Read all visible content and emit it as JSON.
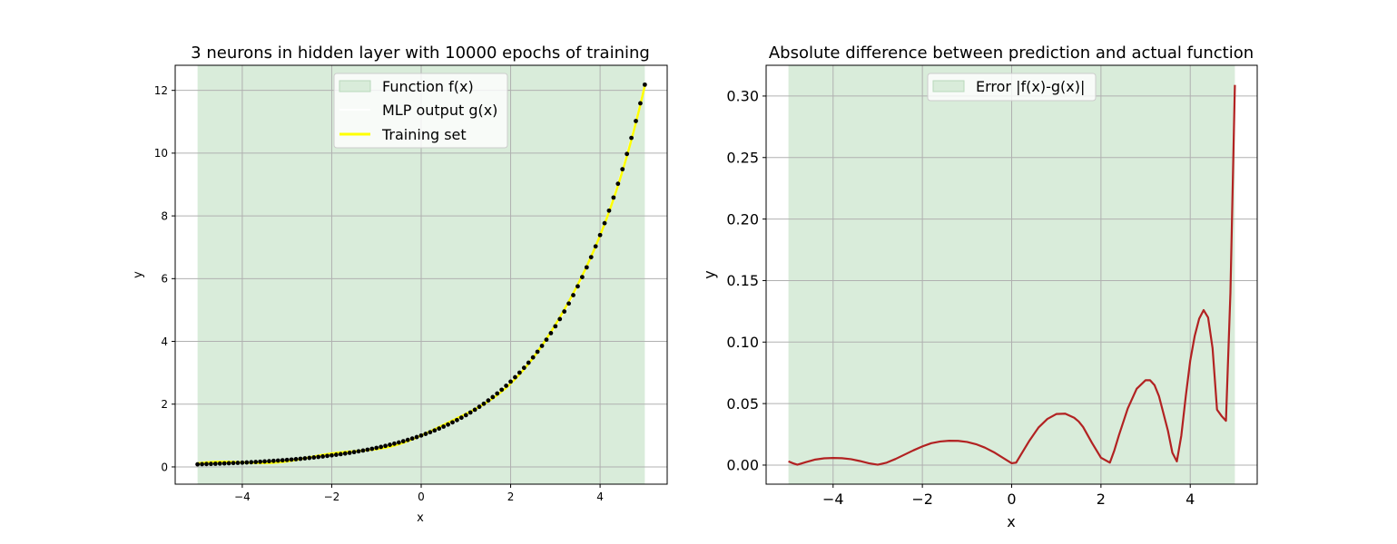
{
  "colors": {
    "span_fill": "#d9ecda",
    "span_edge": "#b9d9bb",
    "grid": "#b0b0b0",
    "function_line": "#ffffff",
    "mlp_line": "#ffff00",
    "training_points": "#000000",
    "error_line": "#b22222",
    "legend_bg": "#ffffff",
    "legend_edge": "#cccccc"
  },
  "chart_data": [
    {
      "type": "line",
      "title": "3 neurons in hidden layer with 10000 epochs of training",
      "xlabel": "x",
      "ylabel": "y",
      "xlim": [
        -5.5,
        5.5
      ],
      "ylim": [
        -0.55,
        12.8
      ],
      "xticks": [
        -4,
        -2,
        0,
        2,
        4
      ],
      "xtick_labels": [
        "−4",
        "−2",
        "0",
        "2",
        "4"
      ],
      "yticks": [
        0,
        2,
        4,
        6,
        8,
        10,
        12
      ],
      "ytick_labels": [
        "0",
        "2",
        "4",
        "6",
        "8",
        "10",
        "12"
      ],
      "grid": true,
      "legend_position": "top-center",
      "shaded_span": [
        -5,
        5
      ],
      "legend": [
        "Function f(x)",
        "MLP output g(x)",
        "Training set"
      ],
      "function": "exp(0.5x)",
      "x_range": [
        -5,
        5
      ],
      "training_points_count": 101
    },
    {
      "type": "line",
      "title": "Absolute difference between prediction and actual function",
      "xlabel": "x",
      "ylabel": "y",
      "xlim": [
        -5.5,
        5.5
      ],
      "ylim": [
        -0.0155,
        0.325
      ],
      "xticks": [
        -4,
        -2,
        0,
        2,
        4
      ],
      "xtick_labels": [
        "−4",
        "−2",
        "0",
        "2",
        "4"
      ],
      "yticks": [
        0,
        0.05,
        0.1,
        0.15,
        0.2,
        0.25,
        0.3
      ],
      "ytick_labels": [
        "0.00",
        "0.05",
        "0.10",
        "0.15",
        "0.20",
        "0.25",
        "0.30"
      ],
      "grid": true,
      "legend_position": "top-center",
      "shaded_span": [
        -5,
        5
      ],
      "legend": [
        "Error |f(x)-g(x)|"
      ],
      "error_x": [
        -5.0,
        -4.9,
        -4.8,
        -4.6,
        -4.4,
        -4.2,
        -4.0,
        -3.8,
        -3.6,
        -3.4,
        -3.2,
        -3.0,
        -2.8,
        -2.6,
        -2.4,
        -2.2,
        -2.0,
        -1.8,
        -1.6,
        -1.4,
        -1.2,
        -1.0,
        -0.8,
        -0.6,
        -0.4,
        -0.2,
        0.0,
        0.1,
        0.2,
        0.3,
        0.4,
        0.6,
        0.8,
        1.0,
        1.2,
        1.4,
        1.5,
        1.6,
        1.8,
        2.0,
        2.2,
        2.3,
        2.4,
        2.6,
        2.8,
        3.0,
        3.1,
        3.2,
        3.3,
        3.4,
        3.5,
        3.6,
        3.7,
        3.8,
        3.9,
        4.0,
        4.1,
        4.2,
        4.3,
        4.4,
        4.5,
        4.6,
        4.7,
        4.8,
        4.9,
        5.0
      ],
      "error_y": [
        0.003,
        0.0015,
        0.0003,
        0.0025,
        0.0045,
        0.0055,
        0.0058,
        0.0056,
        0.0048,
        0.0033,
        0.0015,
        0.0003,
        0.002,
        0.005,
        0.0085,
        0.012,
        0.0152,
        0.0178,
        0.0192,
        0.0198,
        0.0197,
        0.0188,
        0.017,
        0.0142,
        0.0105,
        0.006,
        0.0015,
        0.002,
        0.008,
        0.014,
        0.02,
        0.0305,
        0.0375,
        0.0415,
        0.0418,
        0.0385,
        0.0355,
        0.031,
        0.018,
        0.006,
        0.002,
        0.012,
        0.024,
        0.046,
        0.062,
        0.069,
        0.069,
        0.065,
        0.056,
        0.042,
        0.028,
        0.01,
        0.003,
        0.024,
        0.056,
        0.085,
        0.105,
        0.119,
        0.126,
        0.12,
        0.095,
        0.045,
        0.04,
        0.036,
        0.14,
        0.309
      ]
    }
  ]
}
